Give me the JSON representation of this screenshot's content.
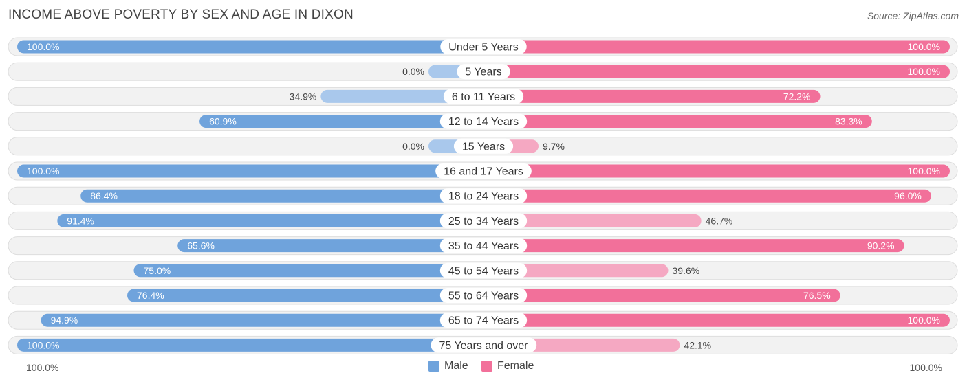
{
  "title": "INCOME ABOVE POVERTY BY SEX AND AGE IN DIXON",
  "source": "Source: ZipAtlas.com",
  "colors": {
    "male": "#6fa3dc",
    "male_light": "#a9c8ec",
    "female": "#f2709a",
    "female_light": "#f5a8c2",
    "row_bg": "#f2f2f2",
    "row_border": "#dddddd"
  },
  "chart_data": {
    "type": "bar",
    "orientation": "horizontal-diverging",
    "title": "INCOME ABOVE POVERTY BY SEX AND AGE IN DIXON",
    "categories": [
      "Under 5 Years",
      "5 Years",
      "6 to 11 Years",
      "12 to 14 Years",
      "15 Years",
      "16 and 17 Years",
      "18 to 24 Years",
      "25 to 34 Years",
      "35 to 44 Years",
      "45 to 54 Years",
      "55 to 64 Years",
      "65 to 74 Years",
      "75 Years and over"
    ],
    "series": [
      {
        "name": "Male",
        "values": [
          100.0,
          0.0,
          34.9,
          60.9,
          0.0,
          100.0,
          86.4,
          91.4,
          65.6,
          75.0,
          76.4,
          94.9,
          100.0
        ],
        "labels": [
          "100.0%",
          "0.0%",
          "34.9%",
          "60.9%",
          "0.0%",
          "100.0%",
          "86.4%",
          "91.4%",
          "65.6%",
          "75.0%",
          "76.4%",
          "94.9%",
          "100.0%"
        ]
      },
      {
        "name": "Female",
        "values": [
          100.0,
          100.0,
          72.2,
          83.3,
          9.7,
          100.0,
          96.0,
          46.7,
          90.2,
          39.6,
          76.5,
          100.0,
          42.1
        ],
        "labels": [
          "100.0%",
          "100.0%",
          "72.2%",
          "83.3%",
          "9.7%",
          "100.0%",
          "96.0%",
          "46.7%",
          "90.2%",
          "39.6%",
          "76.5%",
          "100.0%",
          "42.1%"
        ]
      }
    ],
    "xlim": [
      0,
      100
    ],
    "axis_left_label": "100.0%",
    "axis_right_label": "100.0%",
    "legend": {
      "items": [
        "Male",
        "Female"
      ],
      "position": "bottom-center"
    },
    "grid": false
  }
}
